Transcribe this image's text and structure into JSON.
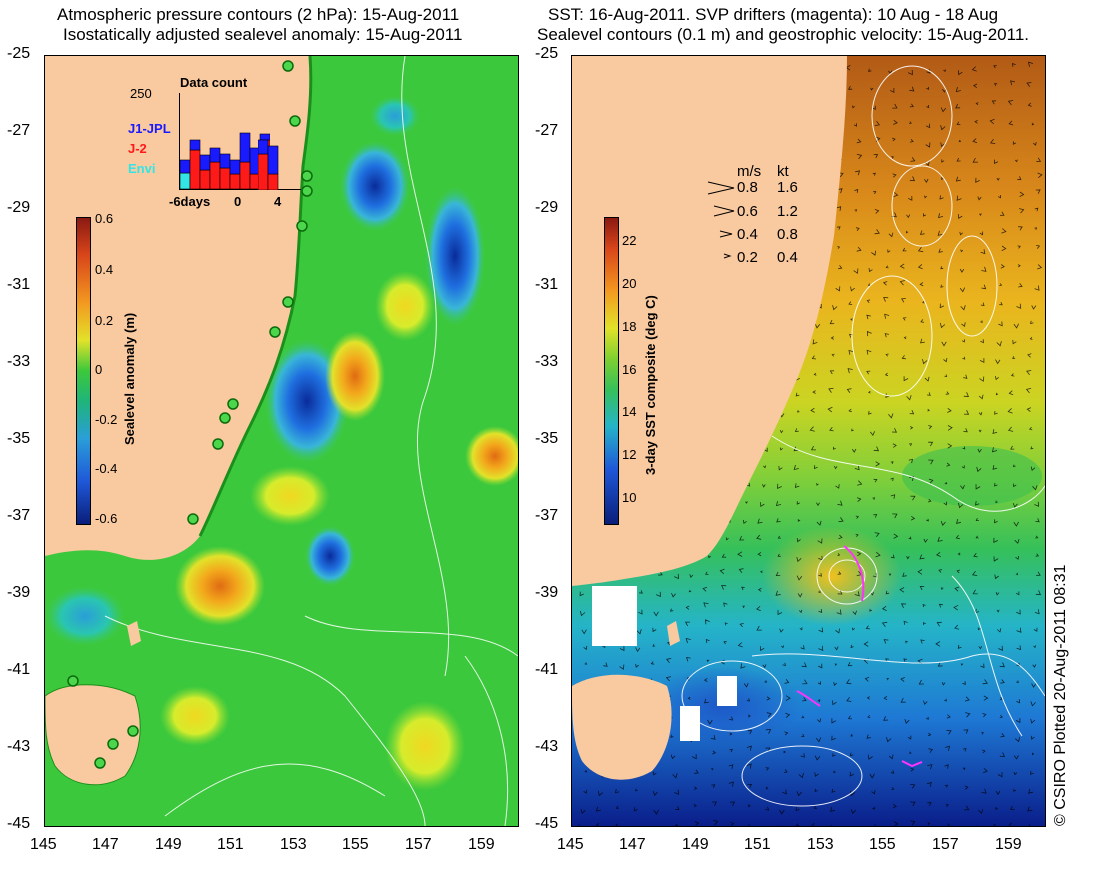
{
  "titles": {
    "left_line1": "Atmospheric pressure contours (2 hPa): 15-Aug-2011",
    "left_line2": "Isostatically adjusted sealevel anomaly: 15-Aug-2011",
    "right_line1": "SST: 16-Aug-2011. SVP drifters (magenta): 10 Aug - 18 Aug",
    "right_line2": "Sealevel contours (0.1 m) and geostrophic velocity: 15-Aug-2011."
  },
  "axes": {
    "y_ticks": [
      "-25",
      "-27",
      "-29",
      "-31",
      "-33",
      "-35",
      "-37",
      "-39",
      "-41",
      "-43",
      "-45"
    ],
    "x_ticks": [
      "145",
      "147",
      "149",
      "151",
      "153",
      "155",
      "157",
      "159"
    ]
  },
  "left_colorbar": {
    "label": "Sealevel anomaly (m)",
    "ticks": [
      "0.6",
      "0.4",
      "0.2",
      "0",
      "-0.2",
      "-0.4",
      "-0.6"
    ]
  },
  "right_colorbar": {
    "label": "3-day SST composite (deg C)",
    "ticks": [
      "22",
      "20",
      "18",
      "16",
      "14",
      "12",
      "10"
    ]
  },
  "data_count": {
    "title": "Data count",
    "max_label": "250",
    "x_ticks": [
      "-6days",
      "0",
      "4"
    ],
    "legend": [
      {
        "name": "J1-JPL",
        "color": "#1a1aff"
      },
      {
        "name": "J-2",
        "color": "#ff1a1a"
      },
      {
        "name": "Envi",
        "color": "#33e5e5"
      }
    ]
  },
  "velocity_legend": {
    "header_ms": "m/s",
    "header_kt": "kt",
    "rows": [
      {
        "ms": "0.8",
        "kt": "1.6"
      },
      {
        "ms": "0.6",
        "kt": "1.2"
      },
      {
        "ms": "0.4",
        "kt": "0.8"
      },
      {
        "ms": "0.2",
        "kt": "0.4"
      }
    ]
  },
  "credit": "© CSIRO Plotted 20-Aug-2011 08:31",
  "colors": {
    "land": "#f9c9a0",
    "left_ocean_bg": "#3cc83c",
    "right_ocean_bg": "#2a9bd8"
  }
}
